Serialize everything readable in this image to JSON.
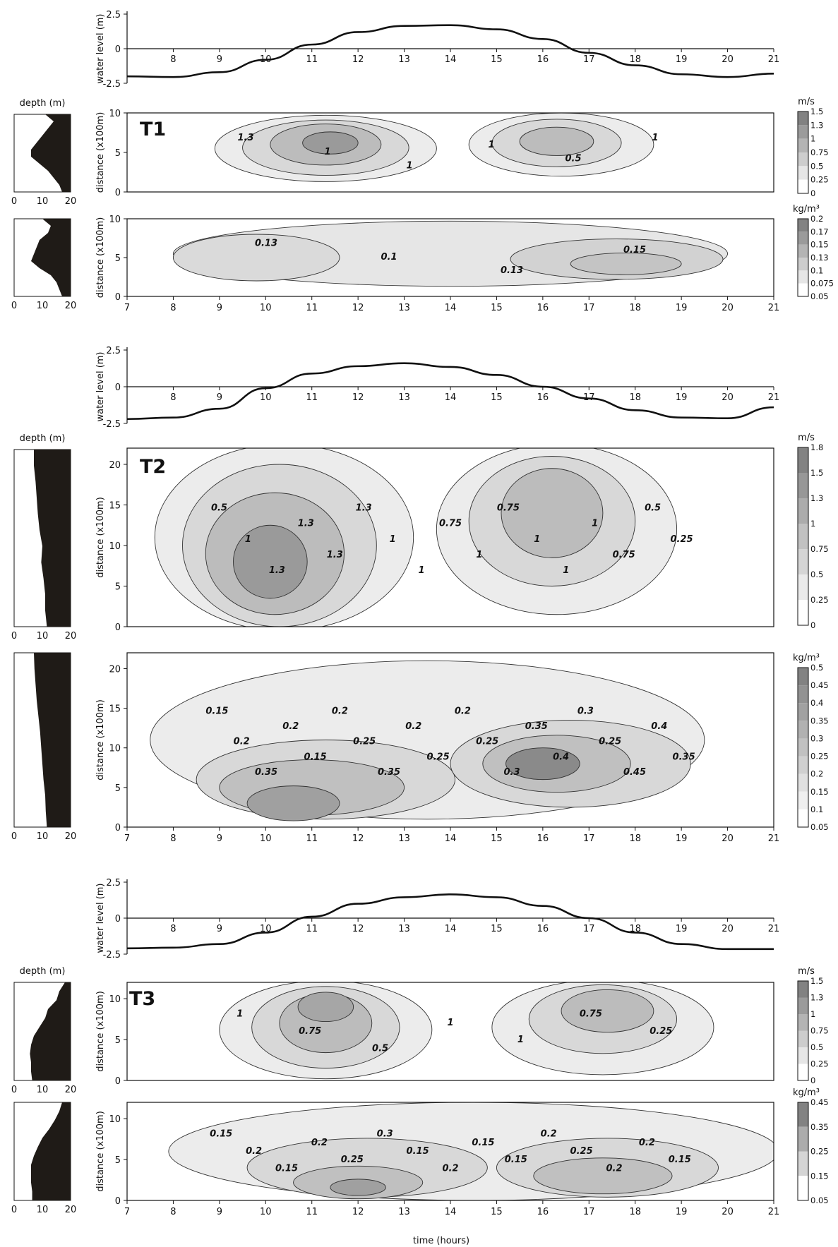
{
  "chart_data": {
    "type": "heatmap",
    "xlabel": "time (hours)",
    "x_ticks": [
      7,
      8,
      9,
      10,
      11,
      12,
      13,
      14,
      15,
      16,
      17,
      18,
      19,
      20,
      21
    ],
    "transects": [
      {
        "name": "T1",
        "water_level": {
          "ylabel": "water level (m)",
          "y_ticks": [
            "2.5",
            "0",
            "-2.5"
          ],
          "ylim": [
            -2.5,
            2.5
          ],
          "x": [
            7,
            8,
            9,
            10,
            11,
            12,
            13,
            14,
            15,
            16,
            17,
            18,
            19,
            20,
            21
          ],
          "y": [
            -2.0,
            -2.05,
            -1.7,
            -0.8,
            0.3,
            1.2,
            1.65,
            1.7,
            1.4,
            0.7,
            -0.3,
            -1.2,
            -1.85,
            -2.05,
            -1.8
          ]
        },
        "profile": {
          "label": "depth (m)",
          "x_ticks": [
            "0",
            "10",
            "20"
          ],
          "shape": [
            0.55,
            0.7,
            0.6,
            0.5,
            0.4,
            0.3,
            0.3,
            0.45,
            0.6,
            0.7,
            0.8,
            0.85
          ]
        },
        "profile2_shape": [
          0.5,
          0.65,
          0.6,
          0.45,
          0.4,
          0.35,
          0.3,
          0.45,
          0.65,
          0.75,
          0.8,
          0.85
        ],
        "velocity": {
          "ylabel": "distance (x100m)",
          "y_ticks": [
            "10",
            "5",
            "0"
          ],
          "ylim": [
            0,
            10
          ],
          "unit": "m/s",
          "scale": [
            "1.5",
            "1.3",
            "1",
            "0.75",
            "0.5",
            "0.25",
            "0"
          ],
          "contour_labels": [
            "1.3",
            "1",
            "1",
            "1",
            "0.5",
            "1"
          ],
          "blobs": [
            {
              "t": 11.3,
              "d": 5.5,
              "rt": 2.4,
              "rd": 4.2,
              "c": "#ececec"
            },
            {
              "t": 11.3,
              "d": 5.6,
              "rt": 1.8,
              "rd": 3.5,
              "c": "#d8d8d8"
            },
            {
              "t": 11.3,
              "d": 6.0,
              "rt": 1.2,
              "rd": 2.6,
              "c": "#bcbcbc"
            },
            {
              "t": 11.4,
              "d": 6.2,
              "rt": 0.6,
              "rd": 1.4,
              "c": "#9a9a9a"
            },
            {
              "t": 16.4,
              "d": 6.0,
              "rt": 2.0,
              "rd": 4.0,
              "c": "#ececec"
            },
            {
              "t": 16.3,
              "d": 6.2,
              "rt": 1.4,
              "rd": 3.0,
              "c": "#d8d8d8"
            },
            {
              "t": 16.3,
              "d": 6.4,
              "rt": 0.8,
              "rd": 1.8,
              "c": "#bcbcbc"
            }
          ]
        },
        "concentration": {
          "ylabel": "distance (x100m)",
          "y_ticks": [
            "10",
            "5",
            "0"
          ],
          "ylim": [
            0,
            10
          ],
          "unit": "kg/m³",
          "scale": [
            "0.2",
            "0.17",
            "0.15",
            "0.13",
            "0.1",
            "0.075",
            "0.05"
          ],
          "contour_labels": [
            "0.13",
            "0.1",
            "0.13",
            "0.15"
          ],
          "blobs": [
            {
              "t": 14,
              "d": 5.5,
              "rt": 6.0,
              "rd": 4.2,
              "c": "#e6e6e6"
            },
            {
              "t": 9.8,
              "d": 5.0,
              "rt": 1.8,
              "rd": 3.0,
              "c": "#dadada"
            },
            {
              "t": 17.6,
              "d": 4.8,
              "rt": 2.3,
              "rd": 2.6,
              "c": "#d2d2d2"
            },
            {
              "t": 17.8,
              "d": 4.2,
              "rt": 1.2,
              "rd": 1.4,
              "c": "#c4c4c4"
            }
          ]
        }
      },
      {
        "name": "T2",
        "water_level": {
          "ylabel": "water level (m)",
          "y_ticks": [
            "2.5",
            "0",
            "-2.5"
          ],
          "ylim": [
            -2.5,
            2.5
          ],
          "x": [
            7,
            8,
            9,
            10,
            11,
            12,
            13,
            14,
            15,
            16,
            17,
            18,
            19,
            20,
            21
          ],
          "y": [
            -2.2,
            -2.1,
            -1.5,
            -0.1,
            0.9,
            1.4,
            1.6,
            1.35,
            0.8,
            0.0,
            -0.8,
            -1.6,
            -2.1,
            -2.15,
            -1.4
          ]
        },
        "profile": {
          "label": "depth (m)",
          "x_ticks": [
            "0",
            "10",
            "20"
          ],
          "shape": [
            0.35,
            0.35,
            0.38,
            0.4,
            0.42,
            0.45,
            0.5,
            0.48,
            0.52,
            0.55,
            0.55,
            0.58
          ]
        },
        "profile2_shape": [
          0.35,
          0.36,
          0.38,
          0.4,
          0.43,
          0.46,
          0.48,
          0.5,
          0.52,
          0.55,
          0.56,
          0.58
        ],
        "velocity": {
          "ylabel": "distance (x100m)",
          "y_ticks": [
            "20",
            "15",
            "10",
            "5",
            "0"
          ],
          "ylim": [
            0,
            22
          ],
          "unit": "m/s",
          "scale": [
            "1.8",
            "1.5",
            "1.3",
            "1",
            "0.75",
            "0.5",
            "0.25",
            "0"
          ],
          "contour_labels": [
            "0.5",
            "1",
            "1.3",
            "1.3",
            "1.3",
            "1.3",
            "1",
            "1",
            "0.75",
            "1",
            "0.75",
            "1",
            "1",
            "1",
            "0.75",
            "0.5",
            "0.25"
          ],
          "blobs": [
            {
              "t": 10.4,
              "d": 11,
              "rt": 2.8,
              "rd": 11.5,
              "c": "#ececec"
            },
            {
              "t": 10.3,
              "d": 10,
              "rt": 2.1,
              "rd": 10,
              "c": "#d8d8d8"
            },
            {
              "t": 10.2,
              "d": 9,
              "rt": 1.5,
              "rd": 7.5,
              "c": "#bcbcbc"
            },
            {
              "t": 10.1,
              "d": 8,
              "rt": 0.8,
              "rd": 4.5,
              "c": "#9a9a9a"
            },
            {
              "t": 16.3,
              "d": 12,
              "rt": 2.6,
              "rd": 10.5,
              "c": "#ececec"
            },
            {
              "t": 16.2,
              "d": 13,
              "rt": 1.8,
              "rd": 8.0,
              "c": "#d8d8d8"
            },
            {
              "t": 16.2,
              "d": 14,
              "rt": 1.1,
              "rd": 5.5,
              "c": "#bcbcbc"
            }
          ]
        },
        "concentration": {
          "ylabel": "distance (x100m)",
          "y_ticks": [
            "20",
            "15",
            "10",
            "5",
            "0"
          ],
          "ylim": [
            0,
            22
          ],
          "unit": "kg/m³",
          "scale": [
            "0.5",
            "0.45",
            "0.4",
            "0.35",
            "0.3",
            "0.25",
            "0.2",
            "0.15",
            "0.1",
            "0.05"
          ],
          "contour_labels": [
            "0.15",
            "0.2",
            "0.35",
            "0.2",
            "0.15",
            "0.2",
            "0.25",
            "0.35",
            "0.2",
            "0.25",
            "0.2",
            "0.25",
            "0.3",
            "0.35",
            "0.4",
            "0.3",
            "0.25",
            "0.45",
            "0.4",
            "0.35"
          ],
          "blobs": [
            {
              "t": 13.5,
              "d": 11,
              "rt": 6.0,
              "rd": 10,
              "c": "#ececec"
            },
            {
              "t": 11.3,
              "d": 6,
              "rt": 2.8,
              "rd": 5.0,
              "c": "#d8d8d8"
            },
            {
              "t": 11.0,
              "d": 5,
              "rt": 2.0,
              "rd": 3.5,
              "c": "#c0c0c0"
            },
            {
              "t": 10.6,
              "d": 3,
              "rt": 1.0,
              "rd": 2.2,
              "c": "#a0a0a0"
            },
            {
              "t": 16.6,
              "d": 8,
              "rt": 2.6,
              "rd": 5.5,
              "c": "#d8d8d8"
            },
            {
              "t": 16.3,
              "d": 8,
              "rt": 1.6,
              "rd": 3.6,
              "c": "#c0c0c0"
            },
            {
              "t": 16.0,
              "d": 8,
              "rt": 0.8,
              "rd": 2.0,
              "c": "#8a8a8a"
            }
          ]
        }
      },
      {
        "name": "T3",
        "water_level": {
          "ylabel": "water level (m)",
          "y_ticks": [
            "2.5",
            "0",
            "-2.5"
          ],
          "ylim": [
            -2.5,
            2.5
          ],
          "x": [
            7,
            8,
            9,
            10,
            11,
            12,
            13,
            14,
            15,
            16,
            17,
            18,
            19,
            20,
            21
          ],
          "y": [
            -2.1,
            -2.05,
            -1.8,
            -1.0,
            0.1,
            1.0,
            1.45,
            1.65,
            1.45,
            0.85,
            0.0,
            -1.0,
            -1.8,
            -2.15,
            -2.15
          ]
        },
        "profile": {
          "label": "depth (m)",
          "x_ticks": [
            "0",
            "10",
            "20"
          ],
          "shape": [
            0.9,
            0.8,
            0.75,
            0.6,
            0.55,
            0.45,
            0.35,
            0.3,
            0.28,
            0.3,
            0.3,
            0.32
          ]
        },
        "profile2_shape": [
          0.85,
          0.8,
          0.72,
          0.62,
          0.5,
          0.42,
          0.35,
          0.3,
          0.3,
          0.3,
          0.32,
          0.32
        ],
        "velocity": {
          "ylabel": "distance (x100m)",
          "y_ticks": [
            "10",
            "5",
            "0"
          ],
          "ylim": [
            0,
            12
          ],
          "unit": "m/s",
          "scale": [
            "1.5",
            "1.3",
            "1",
            "0.75",
            "0.5",
            "0.25",
            "0"
          ],
          "contour_labels": [
            "1",
            "0.75",
            "0.5",
            "1",
            "1",
            "0.75",
            "0.25"
          ],
          "blobs": [
            {
              "t": 11.3,
              "d": 6.2,
              "rt": 2.3,
              "rd": 6.0,
              "c": "#ececec"
            },
            {
              "t": 11.3,
              "d": 6.5,
              "rt": 1.6,
              "rd": 5.0,
              "c": "#d8d8d8"
            },
            {
              "t": 11.3,
              "d": 7.0,
              "rt": 1.0,
              "rd": 3.6,
              "c": "#bcbcbc"
            },
            {
              "t": 11.3,
              "d": 9.0,
              "rt": 0.6,
              "rd": 1.8,
              "c": "#a6a6a6"
            },
            {
              "t": 17.3,
              "d": 6.5,
              "rt": 2.4,
              "rd": 5.8,
              "c": "#ececec"
            },
            {
              "t": 17.3,
              "d": 7.5,
              "rt": 1.6,
              "rd": 4.2,
              "c": "#d8d8d8"
            },
            {
              "t": 17.4,
              "d": 8.5,
              "rt": 1.0,
              "rd": 2.6,
              "c": "#bcbcbc"
            }
          ]
        },
        "concentration": {
          "ylabel": "distance (x100m)",
          "y_ticks": [
            "10",
            "5",
            "0"
          ],
          "ylim": [
            0,
            12
          ],
          "unit": "kg/m³",
          "scale": [
            "0.45",
            "0.35",
            "0.25",
            "0.15",
            "0.05"
          ],
          "contour_labels": [
            "0.15",
            "0.2",
            "0.15",
            "0.2",
            "0.25",
            "0.3",
            "0.15",
            "0.2",
            "0.15",
            "0.15",
            "0.2",
            "0.25",
            "0.2",
            "0.2",
            "0.15"
          ],
          "blobs": [
            {
              "t": 14.5,
              "d": 6,
              "rt": 6.6,
              "rd": 6.0,
              "c": "#ececec"
            },
            {
              "t": 12.2,
              "d": 4,
              "rt": 2.6,
              "rd": 3.6,
              "c": "#d8d8d8"
            },
            {
              "t": 12.0,
              "d": 2.2,
              "rt": 1.4,
              "rd": 2.0,
              "c": "#c0c0c0"
            },
            {
              "t": 12.0,
              "d": 1.6,
              "rt": 0.6,
              "rd": 1.0,
              "c": "#a0a0a0"
            },
            {
              "t": 17.4,
              "d": 4,
              "rt": 2.4,
              "rd": 3.6,
              "c": "#d8d8d8"
            },
            {
              "t": 17.3,
              "d": 3,
              "rt": 1.5,
              "rd": 2.2,
              "c": "#c0c0c0"
            }
          ]
        }
      }
    ]
  }
}
